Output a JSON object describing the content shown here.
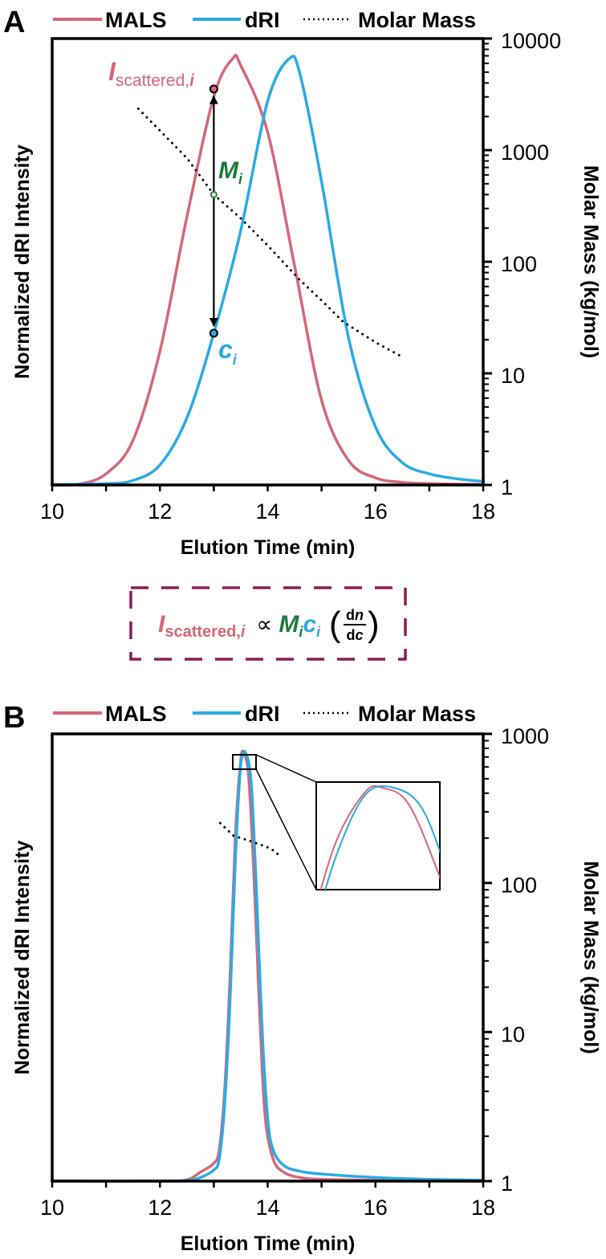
{
  "colors": {
    "mals": "#D4687A",
    "dri": "#2AABE3",
    "molar_mass": "#000000",
    "green": "#1C7A3A",
    "box": "#8A1F55"
  },
  "panels": [
    {
      "letter": "A",
      "legend": [
        {
          "label": "MALS",
          "style": "solid",
          "color": "#D4687A"
        },
        {
          "label": "dRI",
          "style": "solid",
          "color": "#2AABE3"
        },
        {
          "label": "Molar Mass",
          "style": "dotted",
          "color": "#000000"
        }
      ]
    },
    {
      "letter": "B",
      "legend": [
        {
          "label": "MALS",
          "style": "solid",
          "color": "#D4687A"
        },
        {
          "label": "dRI",
          "style": "solid",
          "color": "#2AABE3"
        },
        {
          "label": "Molar Mass",
          "style": "dotted",
          "color": "#000000"
        }
      ]
    }
  ],
  "annotations_A": {
    "i_scattered": {
      "main": "I",
      "sub": "scattered,",
      "sub_italic": "i",
      "x": 13,
      "y": 0.887
    },
    "m_i": {
      "main": "M",
      "sub": "i",
      "x": 13,
      "y": 400
    },
    "c_i": {
      "main": "c",
      "sub": "i",
      "x": 13,
      "y": 0.34
    }
  },
  "equation": {
    "i_main": "I",
    "i_sub": "scattered,",
    "i_sub_italic": "i",
    "proportional": "∝",
    "m_main": "M",
    "m_sub": "i",
    "c_main": "c",
    "c_sub": "i",
    "frac_num_d": "d",
    "frac_num_n": "n",
    "frac_den_d": "d",
    "frac_den_c": "c"
  },
  "chart_data": [
    {
      "type": "line",
      "panel": "A",
      "xlabel": "Elution Time (min)",
      "ylabel_left": "Normalized dRI Intensity",
      "ylabel_right": "Molar Mass (kg/mol)",
      "xlim": [
        10,
        18
      ],
      "x_ticks": [
        "10",
        "12",
        "14",
        "16",
        "18"
      ],
      "y_left_lim": [
        0,
        1
      ],
      "y_right_scale": "log",
      "y_right_lim": [
        1,
        10000
      ],
      "y_right_ticks": [
        "1",
        "10",
        "100",
        "1000",
        "10000"
      ],
      "grid": false,
      "legend": "top",
      "series": [
        {
          "name": "MALS",
          "axis": "left",
          "x": [
            10,
            10.5,
            11,
            11.5,
            12,
            12.5,
            13,
            13.35,
            13.5,
            14,
            14.5,
            15,
            15.5,
            16,
            16.5,
            17,
            18
          ],
          "y": [
            0,
            0.002,
            0.025,
            0.1,
            0.3,
            0.6,
            0.87,
            0.955,
            0.94,
            0.79,
            0.49,
            0.19,
            0.055,
            0.016,
            0.006,
            0.003,
            0.001
          ]
        },
        {
          "name": "dRI",
          "axis": "left",
          "x": [
            10,
            11,
            11.5,
            12,
            12.5,
            13,
            13.5,
            14,
            14.4,
            14.6,
            15,
            15.5,
            16,
            16.5,
            17,
            17.5,
            18
          ],
          "y": [
            0.001,
            0.003,
            0.01,
            0.045,
            0.15,
            0.34,
            0.57,
            0.86,
            0.955,
            0.92,
            0.68,
            0.33,
            0.13,
            0.05,
            0.025,
            0.014,
            0.008
          ]
        },
        {
          "name": "Molar Mass",
          "axis": "right",
          "x": [
            11.6,
            12.5,
            13,
            13.5,
            14,
            14.58,
            15,
            15.4,
            16,
            16.5
          ],
          "y": [
            2350,
            850,
            400,
            245,
            140,
            70,
            45,
            29,
            19,
            14
          ]
        }
      ]
    },
    {
      "type": "line",
      "panel": "B",
      "xlabel": "Elution Time (min)",
      "ylabel_left": "Normalized dRI Intensity",
      "ylabel_right": "Molar Mass (kg/mol)",
      "xlim": [
        10,
        18
      ],
      "x_ticks": [
        "10",
        "12",
        "14",
        "16",
        "18"
      ],
      "y_left_lim": [
        0,
        1
      ],
      "y_right_scale": "log",
      "y_right_lim": [
        1,
        1000
      ],
      "y_right_ticks": [
        "1",
        "10",
        "100",
        "1000"
      ],
      "grid": false,
      "legend": "top",
      "inset": "zoom of peak apex",
      "series": [
        {
          "name": "MALS",
          "axis": "left",
          "x": [
            10,
            12,
            12.5,
            12.75,
            13,
            13.1,
            13.2,
            13.3,
            13.4,
            13.5,
            13.56,
            13.65,
            13.75,
            13.85,
            13.95,
            14.1,
            14.3,
            14.6,
            15,
            16,
            18
          ],
          "y": [
            0,
            0,
            0.003,
            0.02,
            0.04,
            0.07,
            0.2,
            0.45,
            0.77,
            0.94,
            0.955,
            0.9,
            0.67,
            0.38,
            0.15,
            0.05,
            0.02,
            0.008,
            0.004,
            0.002,
            0
          ]
        },
        {
          "name": "dRI",
          "axis": "left",
          "x": [
            10,
            12,
            12.5,
            12.75,
            13,
            13.1,
            13.2,
            13.3,
            13.4,
            13.5,
            13.6,
            13.7,
            13.8,
            13.9,
            14,
            14.1,
            14.3,
            14.6,
            15,
            16,
            17,
            18
          ],
          "y": [
            0,
            0,
            0.001,
            0.008,
            0.025,
            0.05,
            0.17,
            0.4,
            0.72,
            0.93,
            0.955,
            0.88,
            0.62,
            0.33,
            0.14,
            0.07,
            0.035,
            0.022,
            0.016,
            0.008,
            0.004,
            0.002
          ]
        },
        {
          "name": "Molar Mass",
          "axis": "right",
          "x": [
            13.12,
            13.36,
            13.7,
            14.06,
            14.22
          ],
          "y": [
            252,
            208,
            190,
            170,
            153
          ]
        }
      ]
    }
  ]
}
